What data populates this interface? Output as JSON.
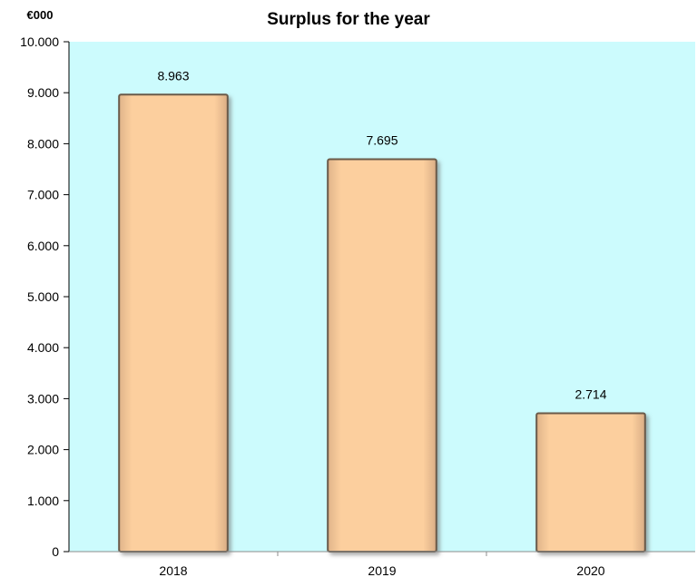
{
  "chart_data": {
    "type": "bar",
    "title": "Surplus for the year",
    "unit_label": "€000",
    "categories": [
      "2018",
      "2019",
      "2020"
    ],
    "values": [
      8963,
      7695,
      2714
    ],
    "value_labels": [
      "8.963",
      "7.695",
      "2.714"
    ],
    "ylim": [
      0,
      10000
    ],
    "yticks": [
      0,
      1000,
      2000,
      3000,
      4000,
      5000,
      6000,
      7000,
      8000,
      9000,
      10000
    ],
    "ytick_labels": [
      "0",
      "1.000",
      "2.000",
      "3.000",
      "4.000",
      "5.000",
      "6.000",
      "7.000",
      "8.000",
      "9.000",
      "10.000"
    ],
    "grid": false,
    "legend": "none",
    "colors": {
      "plot_background": "#ccfbfd",
      "bar_fill": "#fccf9e",
      "bar_edge": "#6b5a4a",
      "axis": "#000000"
    }
  }
}
